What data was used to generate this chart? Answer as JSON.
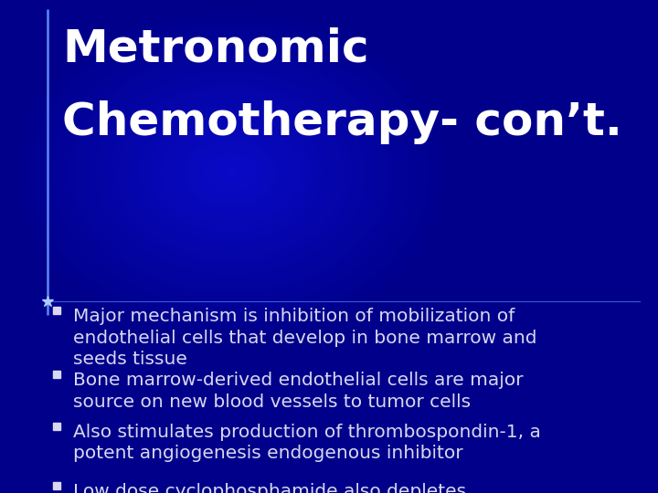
{
  "title_line1": "Metronomic",
  "title_line2": "Chemotherapy- con’t.",
  "title_color": "#FFFFFF",
  "title_fontsize": 36,
  "bullet_color": "#D8D8F0",
  "bullet_fontsize": 14.5,
  "accent_line_color": "#6699FF",
  "star_color": "#AACCFF",
  "bullets": [
    "Major mechanism is inhibition of mobilization of\nendothelial cells that develop in bone marrow and\nseeds tissue",
    "Bone marrow-derived endothelial cells are major\nsource on new blood vessels to tumor cells",
    "Also stimulates production of thrombospondin-1, a\npotent angiogenesis endogenous inhibitor",
    "Low dose cyclophosphamide also depletes\nregulatory T-cells which are immunosuppressive on\neffector T-cells and antigen presenting cells"
  ]
}
